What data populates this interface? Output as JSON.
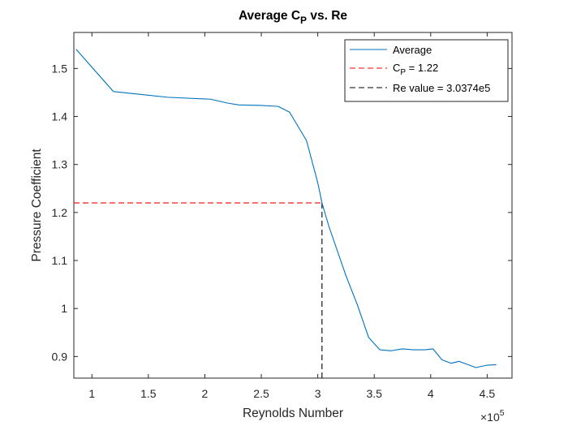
{
  "chart_data": {
    "type": "line",
    "title": "Average C",
    "title_subscript": "P",
    "title_suffix": " vs. Re",
    "xlabel": "Reynolds Number",
    "ylabel": "Pressure Coefficient",
    "x_exponent_base": "×10",
    "x_exponent_power": "5",
    "xlim": [
      0.84,
      4.72
    ],
    "ylim": [
      0.855,
      1.575
    ],
    "xticks": [
      1,
      1.5,
      2,
      2.5,
      3,
      3.5,
      4,
      4.5
    ],
    "xtick_labels": [
      "1",
      "1.5",
      "2",
      "2.5",
      "3",
      "3.5",
      "4",
      "4.5"
    ],
    "yticks": [
      0.9,
      1.0,
      1.1,
      1.2,
      1.3,
      1.4,
      1.5
    ],
    "ytick_labels": [
      "0.9",
      "1",
      "1.1",
      "1.2",
      "1.3",
      "1.4",
      "1.5"
    ],
    "grid": false,
    "box": true,
    "legend_position": "top-right",
    "series": [
      {
        "name": "Average",
        "color": "#0072BD",
        "style": "solid",
        "x": [
          0.86,
          1.19,
          1.43,
          1.67,
          2.05,
          2.2,
          2.3,
          2.5,
          2.65,
          2.75,
          2.9,
          3.0,
          3.0374,
          3.1,
          3.25,
          3.35,
          3.45,
          3.55,
          3.65,
          3.75,
          3.85,
          3.95,
          4.02,
          4.1,
          4.18,
          4.25,
          4.4,
          4.5,
          4.58
        ],
        "y": [
          1.54,
          1.452,
          1.446,
          1.44,
          1.436,
          1.428,
          1.424,
          1.423,
          1.421,
          1.409,
          1.35,
          1.262,
          1.22,
          1.17,
          1.068,
          1.008,
          0.94,
          0.914,
          0.912,
          0.916,
          0.914,
          0.914,
          0.916,
          0.893,
          0.886,
          0.89,
          0.877,
          0.882,
          0.883
        ]
      }
    ],
    "reference_lines": [
      {
        "name_main": "C",
        "name_sub": "P",
        "name_rest": " = 1.22",
        "orientation": "horizontal",
        "value": 1.22,
        "extent": [
          0.84,
          3.0374
        ],
        "color": "#FF0000",
        "style": "dashed"
      },
      {
        "name_main": "Re value = 3.0374e5",
        "name_sub": "",
        "name_rest": "",
        "orientation": "vertical",
        "value": 3.0374,
        "extent": [
          0.855,
          1.22
        ],
        "color": "#000000",
        "style": "dashed"
      }
    ]
  }
}
